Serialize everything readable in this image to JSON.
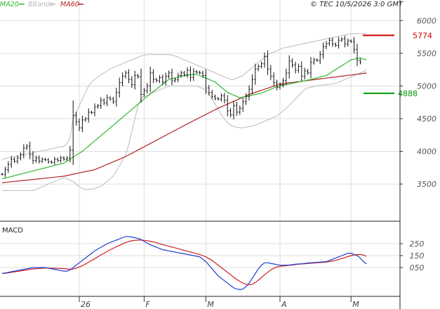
{
  "header": {
    "timestamp": "© TEC 10/5/2026 3:0 GMT",
    "legend": [
      {
        "label": "MA20",
        "color": "#2eb82e"
      },
      {
        "label": "BBands",
        "color": "#bbbbbb"
      },
      {
        "label": "MA60",
        "color": "#b22222"
      }
    ]
  },
  "macd_label": "MACD",
  "colors": {
    "price": "#111111",
    "ma20": "#2eb82e",
    "bbands": "#bbbbbb",
    "ma60": "#b22222",
    "macd": "#2040d0",
    "signal": "#cc2020",
    "resistance": "#cc0000",
    "support": "#009900",
    "grid": "#dddddd"
  },
  "chart_data": [
    {
      "type": "line",
      "name": "price-panel",
      "title": "",
      "xlabel": "",
      "ylabel": "",
      "ylim": [
        3200,
        6100
      ],
      "y_ticks": [
        3500,
        4000,
        4500,
        5000,
        5500,
        6000
      ],
      "x_ticks": [
        {
          "label": "26",
          "bar": 25
        },
        {
          "label": "F",
          "bar": 46
        },
        {
          "label": "M",
          "bar": 66
        },
        {
          "label": "A",
          "bar": 90
        },
        {
          "label": "M",
          "bar": 113
        }
      ],
      "grid": true,
      "levels": [
        {
          "label": "5774",
          "value": 5774,
          "color": "#cc0000"
        },
        {
          "label": "4888",
          "value": 4888,
          "color": "#009900"
        }
      ],
      "series": [
        {
          "name": "Price",
          "type": "ohlc",
          "values": [
            3650,
            3720,
            3800,
            3880,
            3850,
            3900,
            3950,
            4050,
            4080,
            3950,
            3860,
            3900,
            3850,
            3880,
            3870,
            3840,
            3830,
            3880,
            3860,
            3900,
            3880,
            3900,
            4020,
            4550,
            4450,
            4360,
            4480,
            4500,
            4600,
            4590,
            4680,
            4700,
            4780,
            4740,
            4820,
            4800,
            4760,
            4900,
            5050,
            5150,
            5200,
            5100,
            5020,
            5160,
            5140,
            4870,
            4930,
            5000,
            5200,
            5100,
            5080,
            5130,
            5060,
            5150,
            5200,
            5080,
            5100,
            5160,
            5200,
            5170,
            5240,
            5130,
            5220,
            5210,
            5200,
            5160,
            4970,
            4900,
            4840,
            4810,
            4800,
            4850,
            4780,
            4620,
            4560,
            4700,
            4600,
            4660,
            4760,
            4840,
            4950,
            5100,
            5260,
            5300,
            5340,
            5450,
            5260,
            5150,
            5050,
            4980,
            5020,
            5080,
            5200,
            5380,
            5320,
            5240,
            5300,
            5150,
            5230,
            5200,
            5360,
            5400,
            5390,
            5480,
            5600,
            5650,
            5700,
            5640,
            5620,
            5700,
            5720,
            5640,
            5690,
            5680,
            5560,
            5390,
            5360
          ]
        },
        {
          "name": "MA20",
          "values": [
            3580,
            3592,
            3604,
            3616,
            3628,
            3640,
            3652,
            3664,
            3676,
            3688,
            3700,
            3712,
            3724,
            3736,
            3748,
            3760,
            3772,
            3784,
            3796,
            3808,
            3820,
            3850,
            3880,
            3910,
            3940,
            3970,
            4000,
            4040,
            4080,
            4120,
            4160,
            4200,
            4240,
            4280,
            4320,
            4360,
            4400,
            4440,
            4480,
            4520,
            4560,
            4600,
            4640,
            4680,
            4720,
            4760,
            4800,
            4840,
            4880,
            4917,
            4953,
            4990,
            5027,
            5063,
            5100,
            5112,
            5124,
            5136,
            5148,
            5160,
            5165,
            5170,
            5175,
            5180,
            5160,
            5140,
            5120,
            5100,
            5080,
            5060,
            5020,
            4980,
            4940,
            4900,
            4880,
            4860,
            4840,
            4820,
            4830,
            4840,
            4850,
            4860,
            4870,
            4880,
            4890,
            4910,
            4930,
            4950,
            4970,
            4990,
            5000,
            5010,
            5020,
            5030,
            5040,
            5050,
            5060,
            5070,
            5080,
            5090,
            5100,
            5112,
            5124,
            5136,
            5148,
            5160,
            5190,
            5220,
            5250,
            5280,
            5310,
            5340,
            5370,
            5400,
            5410,
            5420,
            5430,
            5410,
            5400
          ]
        },
        {
          "name": "BBand Upper",
          "values": [
            3880,
            3890,
            3900,
            3910,
            3920,
            3930,
            3940,
            3950,
            3960,
            3970,
            3980,
            3990,
            4000,
            4010,
            4020,
            4030,
            4040,
            4050,
            4060,
            4070,
            4080,
            4120,
            4200,
            4500,
            4600,
            4700,
            4800,
            4900,
            5000,
            5060,
            5100,
            5140,
            5170,
            5200,
            5230,
            5260,
            5280,
            5300,
            5320,
            5340,
            5360,
            5380,
            5400,
            5420,
            5440,
            5460,
            5470,
            5480,
            5480,
            5480,
            5480,
            5480,
            5480,
            5480,
            5480,
            5470,
            5460,
            5440,
            5420,
            5400,
            5380,
            5360,
            5340,
            5320,
            5300,
            5280,
            5260,
            5240,
            5220,
            5200,
            5180,
            5160,
            5140,
            5120,
            5100,
            5100,
            5120,
            5140,
            5160,
            5200,
            5240,
            5280,
            5320,
            5360,
            5400,
            5440,
            5480,
            5500,
            5520,
            5540,
            5560,
            5580,
            5590,
            5600,
            5610,
            5620,
            5630,
            5640,
            5650,
            5660,
            5670,
            5680,
            5690,
            5700,
            5710,
            5720,
            5730,
            5740,
            5750,
            5760,
            5770,
            5780,
            5790,
            5795,
            5800,
            5800,
            5800,
            5800,
            5800
          ]
        },
        {
          "name": "BBand Lower",
          "values": [
            3400,
            3400,
            3400,
            3400,
            3400,
            3400,
            3400,
            3400,
            3400,
            3400,
            3400,
            3420,
            3440,
            3460,
            3480,
            3500,
            3520,
            3540,
            3560,
            3580,
            3600,
            3580,
            3560,
            3540,
            3500,
            3460,
            3430,
            3420,
            3420,
            3420,
            3430,
            3450,
            3470,
            3500,
            3540,
            3580,
            3620,
            3700,
            3780,
            3860,
            3940,
            4100,
            4300,
            4500,
            4700,
            4800,
            4840,
            4860,
            4880,
            4900,
            4920,
            4940,
            4960,
            4980,
            5000,
            5000,
            5000,
            5000,
            5000,
            5000,
            5000,
            5000,
            5000,
            5000,
            4980,
            4960,
            4930,
            4880,
            4800,
            4720,
            4640,
            4560,
            4500,
            4440,
            4400,
            4380,
            4370,
            4360,
            4360,
            4370,
            4380,
            4390,
            4400,
            4420,
            4440,
            4460,
            4480,
            4500,
            4520,
            4540,
            4580,
            4620,
            4660,
            4700,
            4750,
            4800,
            4850,
            4900,
            4950,
            4970,
            4980,
            4990,
            5000,
            5010,
            5015,
            5020,
            5025,
            5030,
            5040,
            5060,
            5080,
            5100,
            5120,
            5140,
            5160,
            5180,
            5200,
            5220,
            5240
          ]
        },
        {
          "name": "MA60",
          "values": [
            3520,
            3525,
            3530,
            3535,
            3540,
            3545,
            3550,
            3555,
            3560,
            3565,
            3570,
            3575,
            3580,
            3585,
            3590,
            3595,
            3600,
            3605,
            3610,
            3615,
            3620,
            3630,
            3640,
            3650,
            3660,
            3670,
            3680,
            3690,
            3700,
            3710,
            3720,
            3740,
            3760,
            3780,
            3800,
            3820,
            3840,
            3860,
            3880,
            3900,
            3920,
            3945,
            3970,
            3995,
            4020,
            4045,
            4070,
            4095,
            4120,
            4145,
            4170,
            4195,
            4220,
            4245,
            4270,
            4295,
            4320,
            4345,
            4370,
            4395,
            4420,
            4444,
            4468,
            4492,
            4516,
            4540,
            4564,
            4588,
            4612,
            4636,
            4660,
            4681,
            4702,
            4723,
            4744,
            4765,
            4786,
            4807,
            4828,
            4849,
            4870,
            4886,
            4902,
            4918,
            4934,
            4950,
            4966,
            4982,
            4998,
            5014,
            5030,
            5036,
            5042,
            5048,
            5054,
            5060,
            5066,
            5072,
            5078,
            5084,
            5090,
            5096,
            5102,
            5108,
            5114,
            5120,
            5126,
            5132,
            5138,
            5144,
            5150,
            5156,
            5162,
            5168,
            5174,
            5180,
            5186,
            5192,
            5198
          ]
        }
      ]
    },
    {
      "type": "line",
      "name": "macd-panel",
      "title": "MACD",
      "ylim": [
        -150,
        350
      ],
      "y_ticks": [
        {
          "label": "250",
          "value": 250
        },
        {
          "label": "150",
          "value": 150
        },
        {
          "label": "050",
          "value": 50
        }
      ],
      "grid": true,
      "series": [
        {
          "name": "MACD",
          "values": [
            0,
            5,
            10,
            15,
            20,
            25,
            30,
            35,
            40,
            45,
            50,
            50,
            50,
            50,
            50,
            45,
            40,
            35,
            30,
            25,
            20,
            20,
            30,
            50,
            70,
            90,
            110,
            130,
            150,
            170,
            190,
            205,
            220,
            235,
            250,
            260,
            270,
            280,
            290,
            300,
            310,
            310,
            305,
            300,
            295,
            285,
            270,
            255,
            240,
            230,
            220,
            210,
            200,
            195,
            190,
            185,
            180,
            175,
            170,
            165,
            160,
            155,
            150,
            145,
            140,
            120,
            100,
            70,
            40,
            10,
            -20,
            -40,
            -60,
            -80,
            -100,
            -120,
            -130,
            -135,
            -130,
            -110,
            -80,
            -40,
            0,
            40,
            70,
            90,
            90,
            85,
            80,
            75,
            70,
            70,
            70,
            72,
            75,
            78,
            80,
            82,
            85,
            88,
            90,
            92,
            94,
            96,
            98,
            100,
            110,
            120,
            130,
            140,
            150,
            160,
            170,
            170,
            160,
            150,
            130,
            100,
            80
          ]
        },
        {
          "name": "Signal",
          "values": [
            0,
            3,
            6,
            10,
            14,
            18,
            22,
            26,
            30,
            34,
            38,
            40,
            42,
            44,
            46,
            46,
            45,
            44,
            43,
            42,
            40,
            38,
            36,
            38,
            45,
            55,
            65,
            80,
            95,
            110,
            125,
            140,
            155,
            170,
            185,
            200,
            212,
            224,
            236,
            248,
            260,
            268,
            274,
            278,
            280,
            280,
            278,
            275,
            270,
            265,
            258,
            250,
            243,
            236,
            229,
            222,
            215,
            208,
            201,
            194,
            187,
            180,
            173,
            166,
            160,
            150,
            140,
            125,
            110,
            90,
            70,
            50,
            30,
            10,
            -10,
            -30,
            -50,
            -65,
            -80,
            -90,
            -95,
            -90,
            -75,
            -55,
            -35,
            -10,
            10,
            30,
            45,
            55,
            60,
            63,
            66,
            69,
            72,
            75,
            78,
            80,
            82,
            84,
            86,
            88,
            90,
            92,
            94,
            96,
            100,
            105,
            110,
            118,
            126,
            134,
            142,
            150,
            155,
            158,
            160,
            155,
            145
          ]
        }
      ]
    }
  ]
}
